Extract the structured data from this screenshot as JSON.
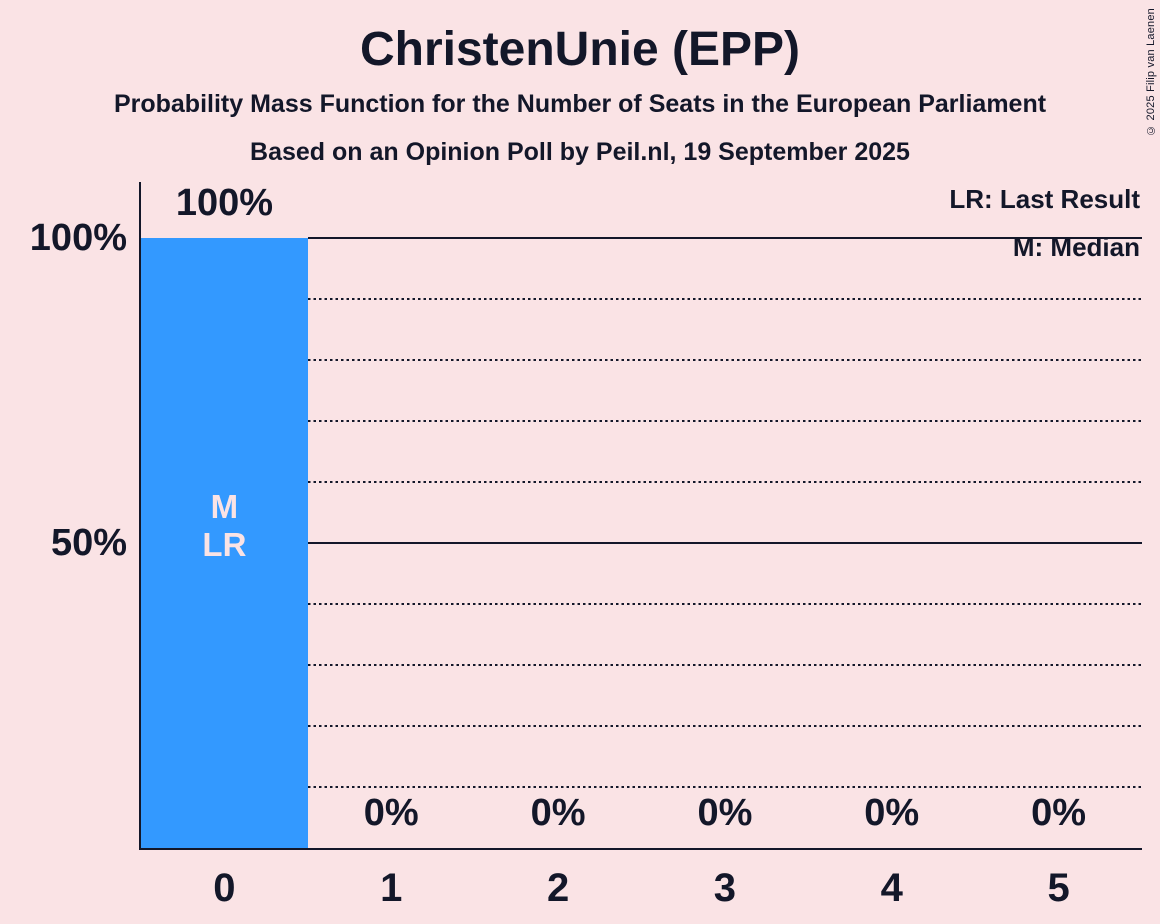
{
  "title": "ChristenUnie (EPP)",
  "subtitle_line1": "Probability Mass Function for the Number of Seats in the European Parliament",
  "subtitle_line2": "Based on an Opinion Poll by Peil.nl, 19 September 2025",
  "copyright": "© 2025 Filip van Laenen",
  "legend": {
    "last_result": "LR: Last Result",
    "median": "M: Median"
  },
  "colors": {
    "background": "#fae3e5",
    "bar": "#3399ff",
    "ink": "#131729",
    "bar_label": "#fae3e5"
  },
  "chart_data": {
    "type": "bar",
    "title": "ChristenUnie (EPP)",
    "categories": [
      "0",
      "1",
      "2",
      "3",
      "4",
      "5"
    ],
    "values": [
      100,
      0,
      0,
      0,
      0,
      0
    ],
    "value_labels": [
      "100%",
      "0%",
      "0%",
      "0%",
      "0%",
      "0%"
    ],
    "bar_annotations": [
      [
        "M",
        "LR"
      ],
      [],
      [],
      [],
      [],
      []
    ],
    "xlabel": "",
    "ylabel": "",
    "ylim": [
      0,
      100
    ],
    "yticks": [
      {
        "value": 100,
        "label": "100%"
      },
      {
        "value": 50,
        "label": "50%"
      }
    ],
    "solid_gridlines": [
      100,
      50
    ],
    "dotted_gridlines": [
      90,
      80,
      70,
      60,
      40,
      30,
      20,
      10
    ],
    "legend_position": "top-right",
    "grid": "horizontal"
  }
}
